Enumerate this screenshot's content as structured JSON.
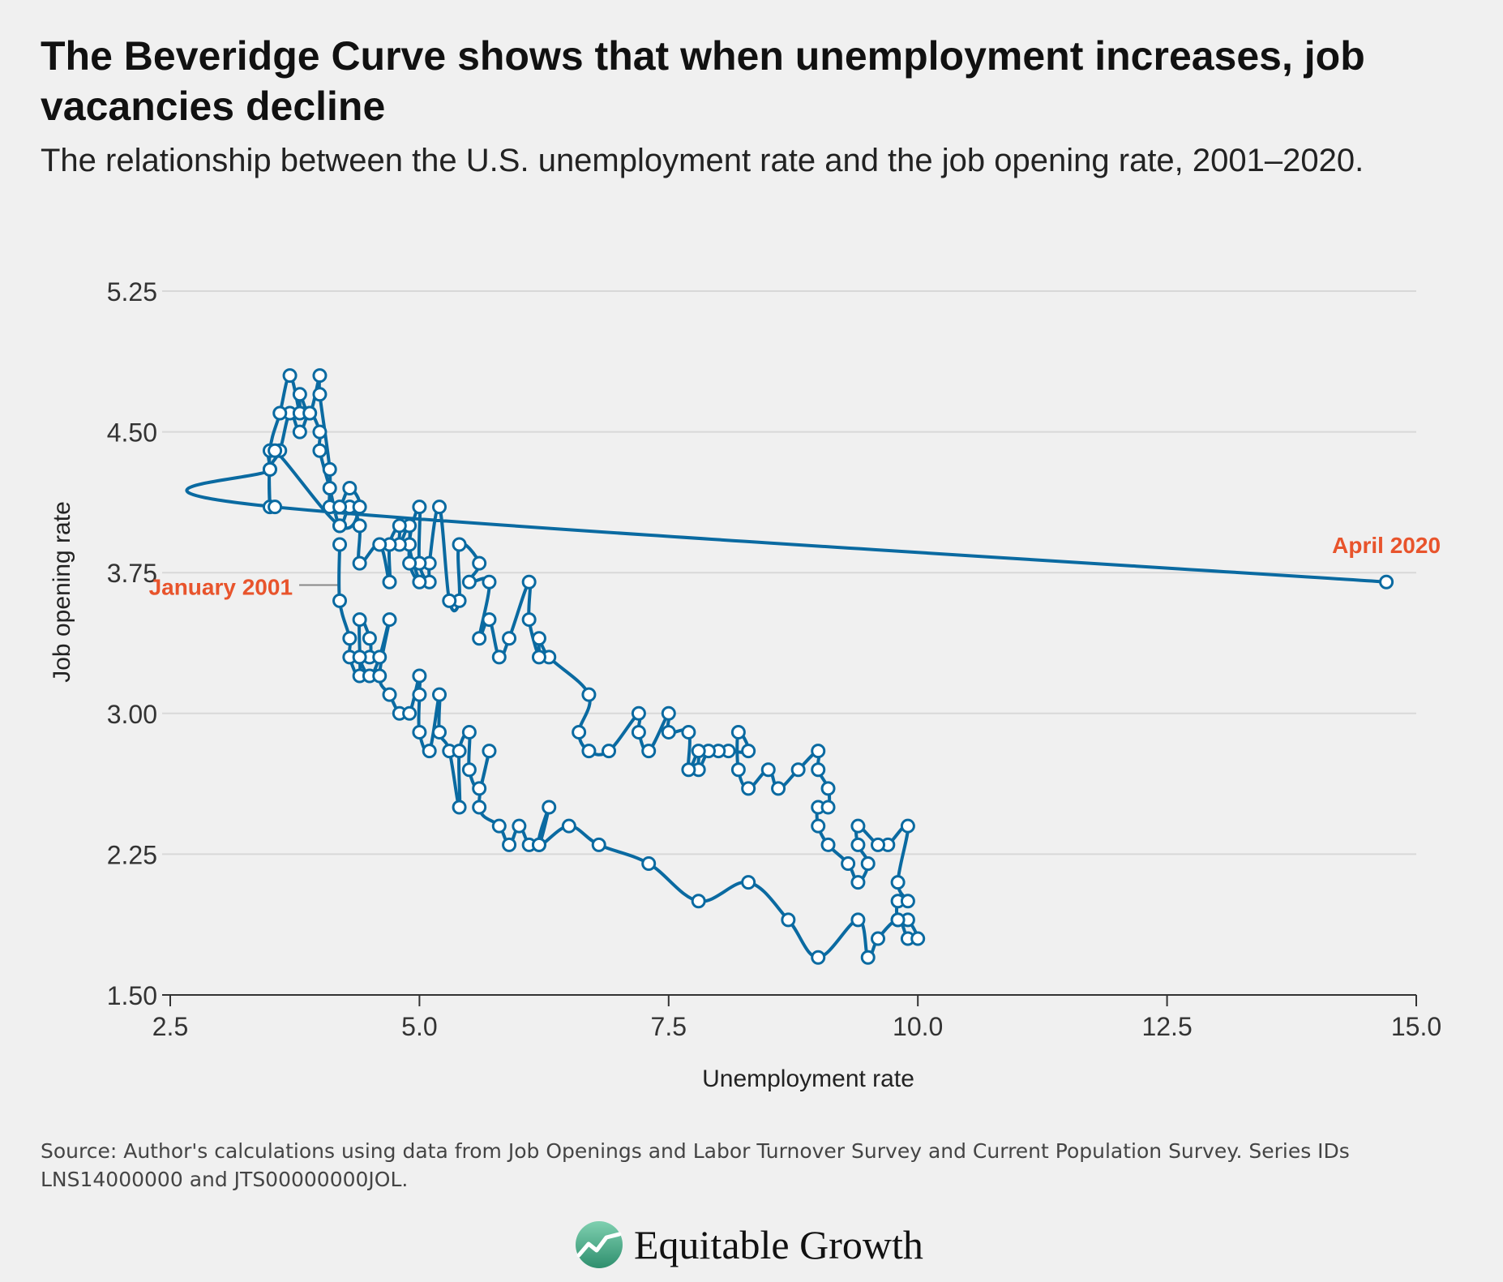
{
  "header": {
    "title": "The Beveridge Curve shows that when unemployment increases, job vacancies decline",
    "subtitle": "The relationship between the U.S. unemployment rate and the job opening rate, 2001–2020."
  },
  "footer": {
    "source": "Source: Author's calculations using data from Job Openings and Labor Turnover Survey and Current Population Survey. Series IDs LNS14000000 and JTS00000000JOL.",
    "logo_text": "Equitable Growth"
  },
  "colors": {
    "line": "#0a6aa1",
    "annotation": "#e8542c",
    "grid": "#d8d8d8",
    "axis": "#333333",
    "background": "#f0f0f0"
  },
  "chart_data": {
    "type": "line",
    "xlabel": "Unemployment rate",
    "ylabel": "Job opening rate",
    "xlim": [
      2.0,
      15.0
    ],
    "ylim": [
      1.5,
      5.25
    ],
    "xticks": [
      "2.5",
      "5.0",
      "7.5",
      "10.0",
      "12.5",
      "15.0"
    ],
    "yticks": [
      "1.50",
      "2.25",
      "3.00",
      "3.75",
      "4.50",
      "5.25"
    ],
    "grid": true,
    "annotations": [
      {
        "text": "January 2001",
        "x": 4.2,
        "y": 3.9
      },
      {
        "text": "April 2020",
        "x": 14.7,
        "y": 3.7
      }
    ],
    "series": [
      {
        "points": [
          [
            4.2,
            3.9
          ],
          [
            4.2,
            3.6
          ],
          [
            4.3,
            3.4
          ],
          [
            4.3,
            3.3
          ],
          [
            4.4,
            3.2
          ],
          [
            4.4,
            3.5
          ],
          [
            4.5,
            3.4
          ],
          [
            4.5,
            3.3
          ],
          [
            4.4,
            3.3
          ],
          [
            4.5,
            3.2
          ],
          [
            4.6,
            3.3
          ],
          [
            4.7,
            3.5
          ],
          [
            4.6,
            3.2
          ],
          [
            4.7,
            3.1
          ],
          [
            4.8,
            3.0
          ],
          [
            4.9,
            3.0
          ],
          [
            5.0,
            3.2
          ],
          [
            5.0,
            3.1
          ],
          [
            5.0,
            2.9
          ],
          [
            5.1,
            2.8
          ],
          [
            5.2,
            3.1
          ],
          [
            5.2,
            2.9
          ],
          [
            5.3,
            2.8
          ],
          [
            5.4,
            2.5
          ],
          [
            5.4,
            2.8
          ],
          [
            5.5,
            2.9
          ],
          [
            5.5,
            2.7
          ],
          [
            5.6,
            2.6
          ],
          [
            5.7,
            2.8
          ],
          [
            5.6,
            2.5
          ],
          [
            5.8,
            2.4
          ],
          [
            5.9,
            2.3
          ],
          [
            6.0,
            2.4
          ],
          [
            6.1,
            2.3
          ],
          [
            6.2,
            2.3
          ],
          [
            6.3,
            2.5
          ],
          [
            6.2,
            2.3
          ],
          [
            6.5,
            2.4
          ],
          [
            6.8,
            2.3
          ],
          [
            7.3,
            2.2
          ],
          [
            7.8,
            2.0
          ],
          [
            8.3,
            2.1
          ],
          [
            8.7,
            1.9
          ],
          [
            9.0,
            1.7
          ],
          [
            9.4,
            1.9
          ],
          [
            9.5,
            1.7
          ],
          [
            9.6,
            1.8
          ],
          [
            9.8,
            1.9
          ],
          [
            9.9,
            1.8
          ],
          [
            10.0,
            1.8
          ],
          [
            9.9,
            1.9
          ],
          [
            9.8,
            1.9
          ],
          [
            9.8,
            2.0
          ],
          [
            9.9,
            2.0
          ],
          [
            9.8,
            2.1
          ],
          [
            9.9,
            2.4
          ],
          [
            9.7,
            2.3
          ],
          [
            9.6,
            2.3
          ],
          [
            9.4,
            2.4
          ],
          [
            9.4,
            2.3
          ],
          [
            9.5,
            2.2
          ],
          [
            9.4,
            2.1
          ],
          [
            9.3,
            2.2
          ],
          [
            9.1,
            2.3
          ],
          [
            9.0,
            2.4
          ],
          [
            9.0,
            2.5
          ],
          [
            9.1,
            2.5
          ],
          [
            9.1,
            2.6
          ],
          [
            9.0,
            2.7
          ],
          [
            9.0,
            2.8
          ],
          [
            8.8,
            2.7
          ],
          [
            8.6,
            2.6
          ],
          [
            8.5,
            2.7
          ],
          [
            8.3,
            2.6
          ],
          [
            8.2,
            2.7
          ],
          [
            8.2,
            2.9
          ],
          [
            8.3,
            2.8
          ],
          [
            8.1,
            2.8
          ],
          [
            8.0,
            2.8
          ],
          [
            7.9,
            2.8
          ],
          [
            7.8,
            2.7
          ],
          [
            7.8,
            2.8
          ],
          [
            7.7,
            2.7
          ],
          [
            7.7,
            2.9
          ],
          [
            7.5,
            2.9
          ],
          [
            7.5,
            3.0
          ],
          [
            7.3,
            2.8
          ],
          [
            7.2,
            2.9
          ],
          [
            7.2,
            3.0
          ],
          [
            6.9,
            2.8
          ],
          [
            6.7,
            2.8
          ],
          [
            6.6,
            2.9
          ],
          [
            6.7,
            3.1
          ],
          [
            6.3,
            3.3
          ],
          [
            6.2,
            3.4
          ],
          [
            6.2,
            3.3
          ],
          [
            6.1,
            3.5
          ],
          [
            6.1,
            3.7
          ],
          [
            5.9,
            3.4
          ],
          [
            5.8,
            3.3
          ],
          [
            5.7,
            3.5
          ],
          [
            5.6,
            3.4
          ],
          [
            5.7,
            3.7
          ],
          [
            5.5,
            3.7
          ],
          [
            5.6,
            3.8
          ],
          [
            5.4,
            3.9
          ],
          [
            5.4,
            3.6
          ],
          [
            5.3,
            3.6
          ],
          [
            5.2,
            4.1
          ],
          [
            5.1,
            3.8
          ],
          [
            5.1,
            3.7
          ],
          [
            5.0,
            3.8
          ],
          [
            5.0,
            4.1
          ],
          [
            4.9,
            3.9
          ],
          [
            5.0,
            3.7
          ],
          [
            4.9,
            3.8
          ],
          [
            4.9,
            4.0
          ],
          [
            4.8,
            3.9
          ],
          [
            4.8,
            4.0
          ],
          [
            4.7,
            3.9
          ],
          [
            4.7,
            3.7
          ],
          [
            4.6,
            3.9
          ],
          [
            4.4,
            3.8
          ],
          [
            4.4,
            4.0
          ],
          [
            4.3,
            4.1
          ],
          [
            4.2,
            4.0
          ],
          [
            4.1,
            4.2
          ],
          [
            4.0,
            4.4
          ],
          [
            4.0,
            4.5
          ],
          [
            3.9,
            4.6
          ],
          [
            3.8,
            4.5
          ],
          [
            3.7,
            4.6
          ],
          [
            3.6,
            4.4
          ],
          [
            3.5,
            4.3
          ],
          [
            3.5,
            4.1
          ],
          [
            3.5,
            4.4
          ],
          [
            3.6,
            4.6
          ],
          [
            3.7,
            4.8
          ],
          [
            3.8,
            4.6
          ],
          [
            3.8,
            4.7
          ],
          [
            3.9,
            4.6
          ],
          [
            4.0,
            4.8
          ],
          [
            4.0,
            4.7
          ],
          [
            4.1,
            4.3
          ],
          [
            4.1,
            4.1
          ],
          [
            4.2,
            4.1
          ],
          [
            4.3,
            4.2
          ],
          [
            4.4,
            4.1
          ],
          [
            4.2,
            4.0
          ],
          [
            3.55,
            4.4
          ],
          [
            3.5,
            4.3
          ],
          [
            3.55,
            4.1
          ],
          [
            14.7,
            3.7
          ]
        ]
      }
    ]
  }
}
